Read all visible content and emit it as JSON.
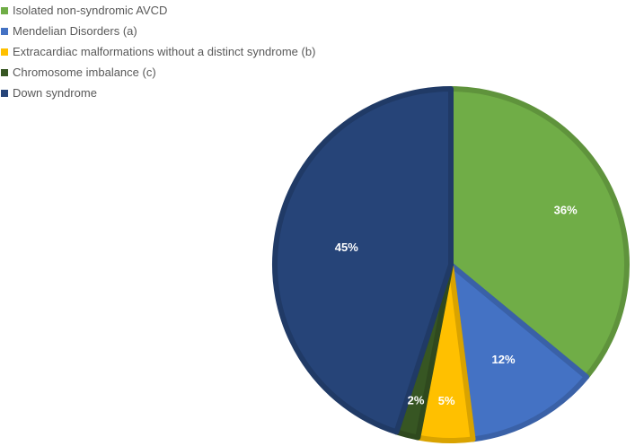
{
  "chart_data": {
    "type": "pie",
    "title": "",
    "legend_position": "top-left",
    "slices": [
      {
        "name": "Isolated non-syndromic AVCD",
        "value": 36,
        "label": "36%",
        "color": "#70AD47"
      },
      {
        "name": "Mendelian Disorders (a)",
        "value": 12,
        "label": "12%",
        "color": "#4472C4"
      },
      {
        "name": "Extracardiac malformations without a distinct syndrome (b)",
        "value": 5,
        "label": "5%",
        "color": "#FFC000"
      },
      {
        "name": "Chromosome imbalance (c)",
        "value": 2,
        "label": "2%",
        "color": "#375623"
      },
      {
        "name": "Down syndrome",
        "value": 45,
        "label": "45%",
        "color": "#264478"
      }
    ]
  }
}
